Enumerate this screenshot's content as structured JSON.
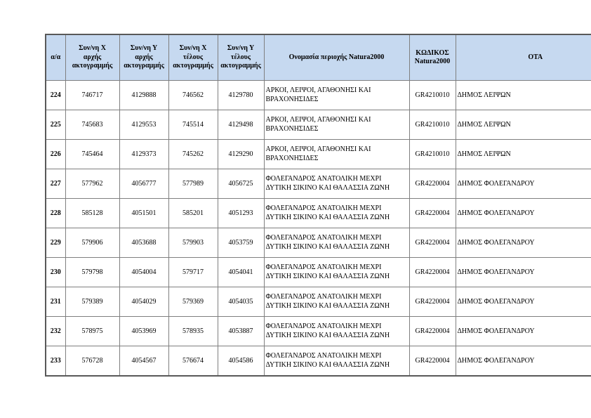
{
  "colors": {
    "header_bg": "#c6d9f0",
    "border_inner": "#7f7f7f",
    "border_outer": "#595959",
    "page_bg": "#ffffff"
  },
  "table": {
    "headers": [
      "α/α",
      "Συν/νη Χ\nαρχής\nακτογραμμής",
      "Συν/νη Υ\nαρχής\nακτογραμμής",
      "Συν/νη Χ\nτέλους\nακτογραμμής",
      "Συν/νη Υ\nτέλους\nακτογραμμής",
      "Ονομασία περιοχής Natura2000",
      "ΚΩΔΙΚΟΣ\nNatura2000",
      "ΟΤΑ"
    ],
    "rows": [
      [
        "224",
        "746717",
        "4129888",
        "746562",
        "4129780",
        "ΑΡΚΟΙ, ΛΕΙΨΟΙ, ΑΓΑΘΟΝΗΣΙ ΚΑΙ ΒΡΑΧΟΝΗΣΙΔΕΣ",
        "GR4210010",
        "ΔΗΜΟΣ ΛΕΙΨΩΝ"
      ],
      [
        "225",
        "745683",
        "4129553",
        "745514",
        "4129498",
        "ΑΡΚΟΙ, ΛΕΙΨΟΙ, ΑΓΑΘΟΝΗΣΙ ΚΑΙ ΒΡΑΧΟΝΗΣΙΔΕΣ",
        "GR4210010",
        "ΔΗΜΟΣ ΛΕΙΨΩΝ"
      ],
      [
        "226",
        "745464",
        "4129373",
        "745262",
        "4129290",
        "ΑΡΚΟΙ, ΛΕΙΨΟΙ, ΑΓΑΘΟΝΗΣΙ ΚΑΙ ΒΡΑΧΟΝΗΣΙΔΕΣ",
        "GR4210010",
        "ΔΗΜΟΣ ΛΕΙΨΩΝ"
      ],
      [
        "227",
        "577962",
        "4056777",
        "577989",
        "4056725",
        "ΦΟΛΕΓΑΝΔΡΟΣ ΑΝΑΤΟΛΙΚΗ ΜΕΧΡΙ ΔΥΤΙΚΗ ΣΙΚΙΝΟ ΚΑΙ ΘΑΛΑΣΣΙΑ ΖΩΝΗ",
        "GR4220004",
        "ΔΗΜΟΣ ΦΟΛΕΓΑΝΔΡΟΥ"
      ],
      [
        "228",
        "585128",
        "4051501",
        "585201",
        "4051293",
        "ΦΟΛΕΓΑΝΔΡΟΣ ΑΝΑΤΟΛΙΚΗ ΜΕΧΡΙ ΔΥΤΙΚΗ ΣΙΚΙΝΟ ΚΑΙ ΘΑΛΑΣΣΙΑ ΖΩΝΗ",
        "GR4220004",
        "ΔΗΜΟΣ ΦΟΛΕΓΑΝΔΡΟΥ"
      ],
      [
        "229",
        "579906",
        "4053688",
        "579903",
        "4053759",
        "ΦΟΛΕΓΑΝΔΡΟΣ ΑΝΑΤΟΛΙΚΗ ΜΕΧΡΙ ΔΥΤΙΚΗ ΣΙΚΙΝΟ ΚΑΙ ΘΑΛΑΣΣΙΑ ΖΩΝΗ",
        "GR4220004",
        "ΔΗΜΟΣ ΦΟΛΕΓΑΝΔΡΟΥ"
      ],
      [
        "230",
        "579798",
        "4054004",
        "579717",
        "4054041",
        "ΦΟΛΕΓΑΝΔΡΟΣ ΑΝΑΤΟΛΙΚΗ ΜΕΧΡΙ ΔΥΤΙΚΗ ΣΙΚΙΝΟ ΚΑΙ ΘΑΛΑΣΣΙΑ ΖΩΝΗ",
        "GR4220004",
        "ΔΗΜΟΣ ΦΟΛΕΓΑΝΔΡΟΥ"
      ],
      [
        "231",
        "579389",
        "4054029",
        "579369",
        "4054035",
        "ΦΟΛΕΓΑΝΔΡΟΣ ΑΝΑΤΟΛΙΚΗ ΜΕΧΡΙ ΔΥΤΙΚΗ ΣΙΚΙΝΟ ΚΑΙ ΘΑΛΑΣΣΙΑ ΖΩΝΗ",
        "GR4220004",
        "ΔΗΜΟΣ ΦΟΛΕΓΑΝΔΡΟΥ"
      ],
      [
        "232",
        "578975",
        "4053969",
        "578935",
        "4053887",
        "ΦΟΛΕΓΑΝΔΡΟΣ ΑΝΑΤΟΛΙΚΗ ΜΕΧΡΙ ΔΥΤΙΚΗ ΣΙΚΙΝΟ ΚΑΙ ΘΑΛΑΣΣΙΑ ΖΩΝΗ",
        "GR4220004",
        "ΔΗΜΟΣ ΦΟΛΕΓΑΝΔΡΟΥ"
      ],
      [
        "233",
        "576728",
        "4054567",
        "576674",
        "4054586",
        "ΦΟΛΕΓΑΝΔΡΟΣ ΑΝΑΤΟΛΙΚΗ ΜΕΧΡΙ ΔΥΤΙΚΗ ΣΙΚΙΝΟ ΚΑΙ ΘΑΛΑΣΣΙΑ ΖΩΝΗ",
        "GR4220004",
        "ΔΗΜΟΣ ΦΟΛΕΓΑΝΔΡΟΥ"
      ]
    ]
  }
}
